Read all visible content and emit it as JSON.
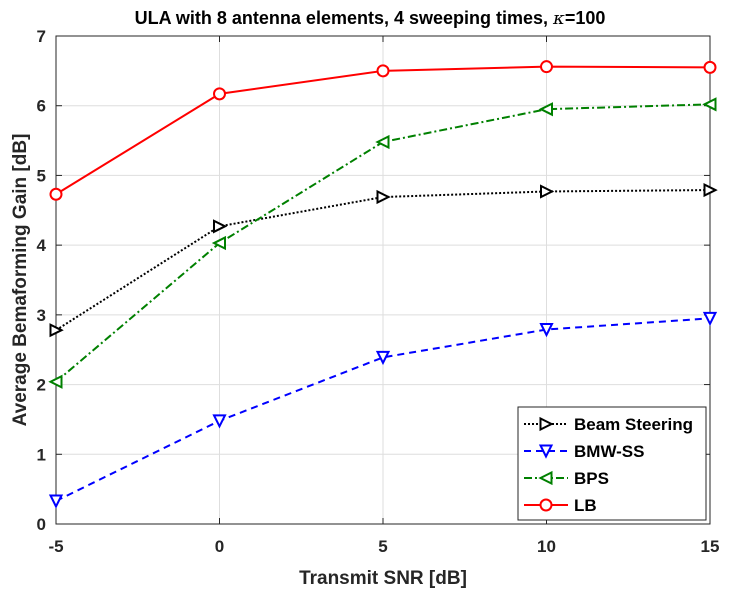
{
  "chart_data": {
    "type": "line",
    "title_prefix": "ULA with 8 antenna elements, 4 sweeping times, ",
    "title_symbol": "κ",
    "title_suffix": "=100",
    "xlabel": "Transmit SNR [dB]",
    "ylabel": "Average Bemaforming Gain [dB]",
    "x": [
      -5,
      0,
      5,
      10,
      15
    ],
    "xlim": [
      -5,
      15
    ],
    "ylim": [
      0,
      7
    ],
    "xticks": [
      -5,
      0,
      5,
      10,
      15
    ],
    "yticks": [
      0,
      1,
      2,
      3,
      4,
      5,
      6,
      7
    ],
    "grid": true,
    "legend_position": "bottom-right",
    "series": [
      {
        "name": "Beam Steering",
        "values": [
          2.78,
          4.27,
          4.69,
          4.77,
          4.79
        ],
        "color": "#000000",
        "dash": "dotted",
        "marker": "triangle-right"
      },
      {
        "name": "BMW-SS",
        "values": [
          0.33,
          1.48,
          2.39,
          2.79,
          2.95
        ],
        "color": "#0000ff",
        "dash": "dashed",
        "marker": "triangle-down"
      },
      {
        "name": "BPS",
        "values": [
          2.04,
          4.03,
          5.48,
          5.95,
          6.02
        ],
        "color": "#008000",
        "dash": "dashdot",
        "marker": "triangle-left"
      },
      {
        "name": "LB",
        "values": [
          4.73,
          6.17,
          6.5,
          6.56,
          6.55
        ],
        "color": "#ff0000",
        "dash": "solid",
        "marker": "circle"
      }
    ]
  }
}
